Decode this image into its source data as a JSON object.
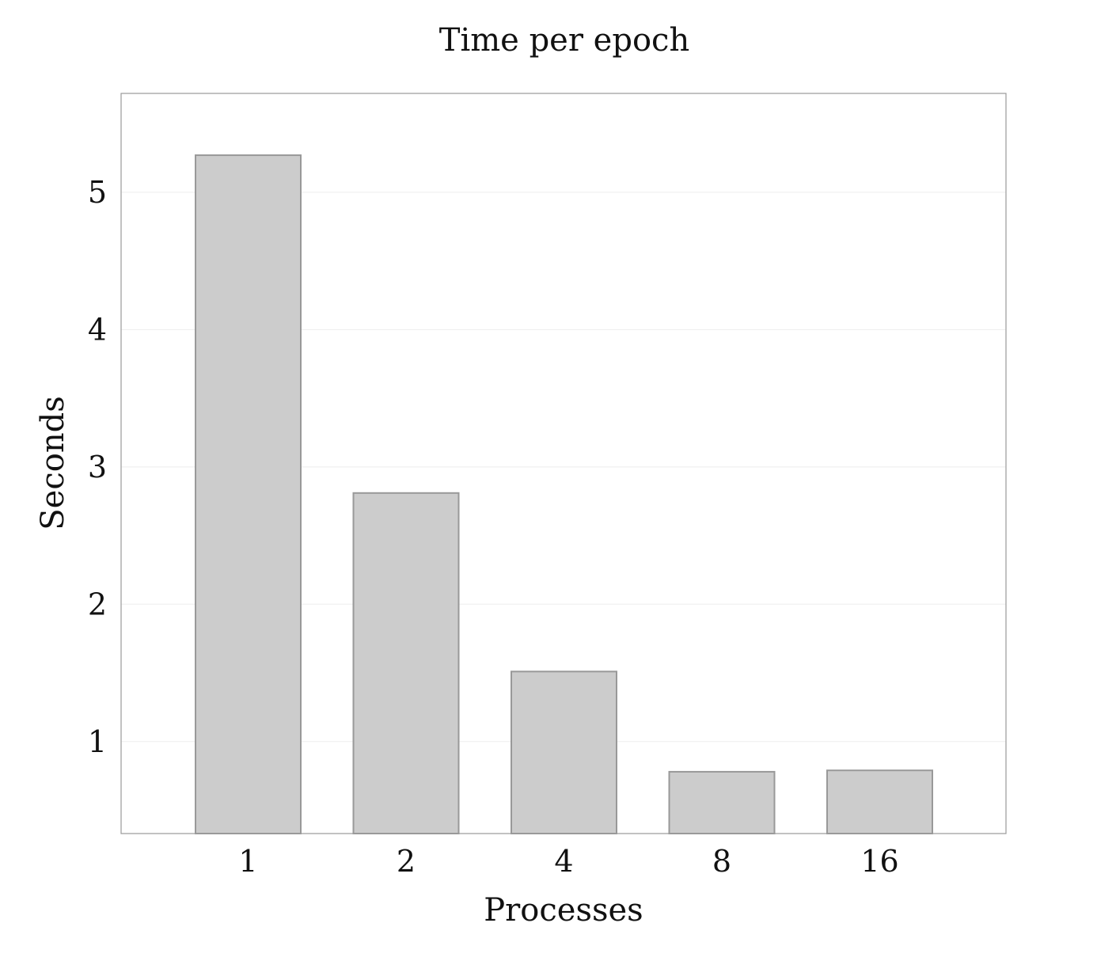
{
  "chart_data": {
    "type": "bar",
    "title": "Time per epoch",
    "xlabel": "Processes",
    "ylabel": "Seconds",
    "categories": [
      "1",
      "2",
      "4",
      "8",
      "16"
    ],
    "values": [
      5.27,
      2.81,
      1.51,
      0.78,
      0.79
    ],
    "ylim": [
      0.33,
      5.72
    ],
    "yticks": [
      "1",
      "2",
      "3",
      "4",
      "5"
    ],
    "grid": "horizontal",
    "bar_fill": "#cccccc",
    "bar_stroke": "#999999",
    "frame_color": "#9a9a9a",
    "grid_color": "#eeeeee"
  }
}
